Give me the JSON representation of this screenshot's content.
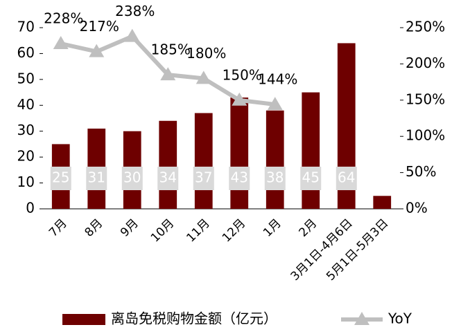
{
  "chart_data": {
    "type": "bar",
    "categories": [
      "7月",
      "8月",
      "9月",
      "10月",
      "11月",
      "12月",
      "1月",
      "2月",
      "3月1日-4月6日",
      "5月1日-5月3日"
    ],
    "series": [
      {
        "name": "离岛免税购物金额（亿元）",
        "type": "bar",
        "color": "#6e0000",
        "values": [
          25,
          31,
          30,
          34,
          37,
          43,
          38,
          45,
          64,
          5
        ]
      },
      {
        "name": "YoY",
        "type": "line",
        "axis": "y2",
        "color": "#bfbfbf",
        "values": [
          228,
          217,
          238,
          185,
          180,
          150,
          144,
          null,
          null,
          null
        ],
        "value_labels": [
          "228%",
          "217%",
          "238%",
          "185%",
          "180%",
          "150%",
          "144%",
          null,
          null,
          null
        ]
      }
    ],
    "ylim": [
      0,
      70
    ],
    "yticks": [
      0,
      10,
      20,
      30,
      40,
      50,
      60,
      70
    ],
    "y2lim": [
      0,
      250
    ],
    "y2ticks": [
      {
        "value": 0,
        "label": "0%"
      },
      {
        "value": 50,
        "label": "50%"
      },
      {
        "value": 100,
        "label": "100%"
      },
      {
        "value": 150,
        "label": "150%"
      },
      {
        "value": 200,
        "label": "200%"
      },
      {
        "value": 250,
        "label": "250%"
      }
    ],
    "legend": "bottom"
  }
}
